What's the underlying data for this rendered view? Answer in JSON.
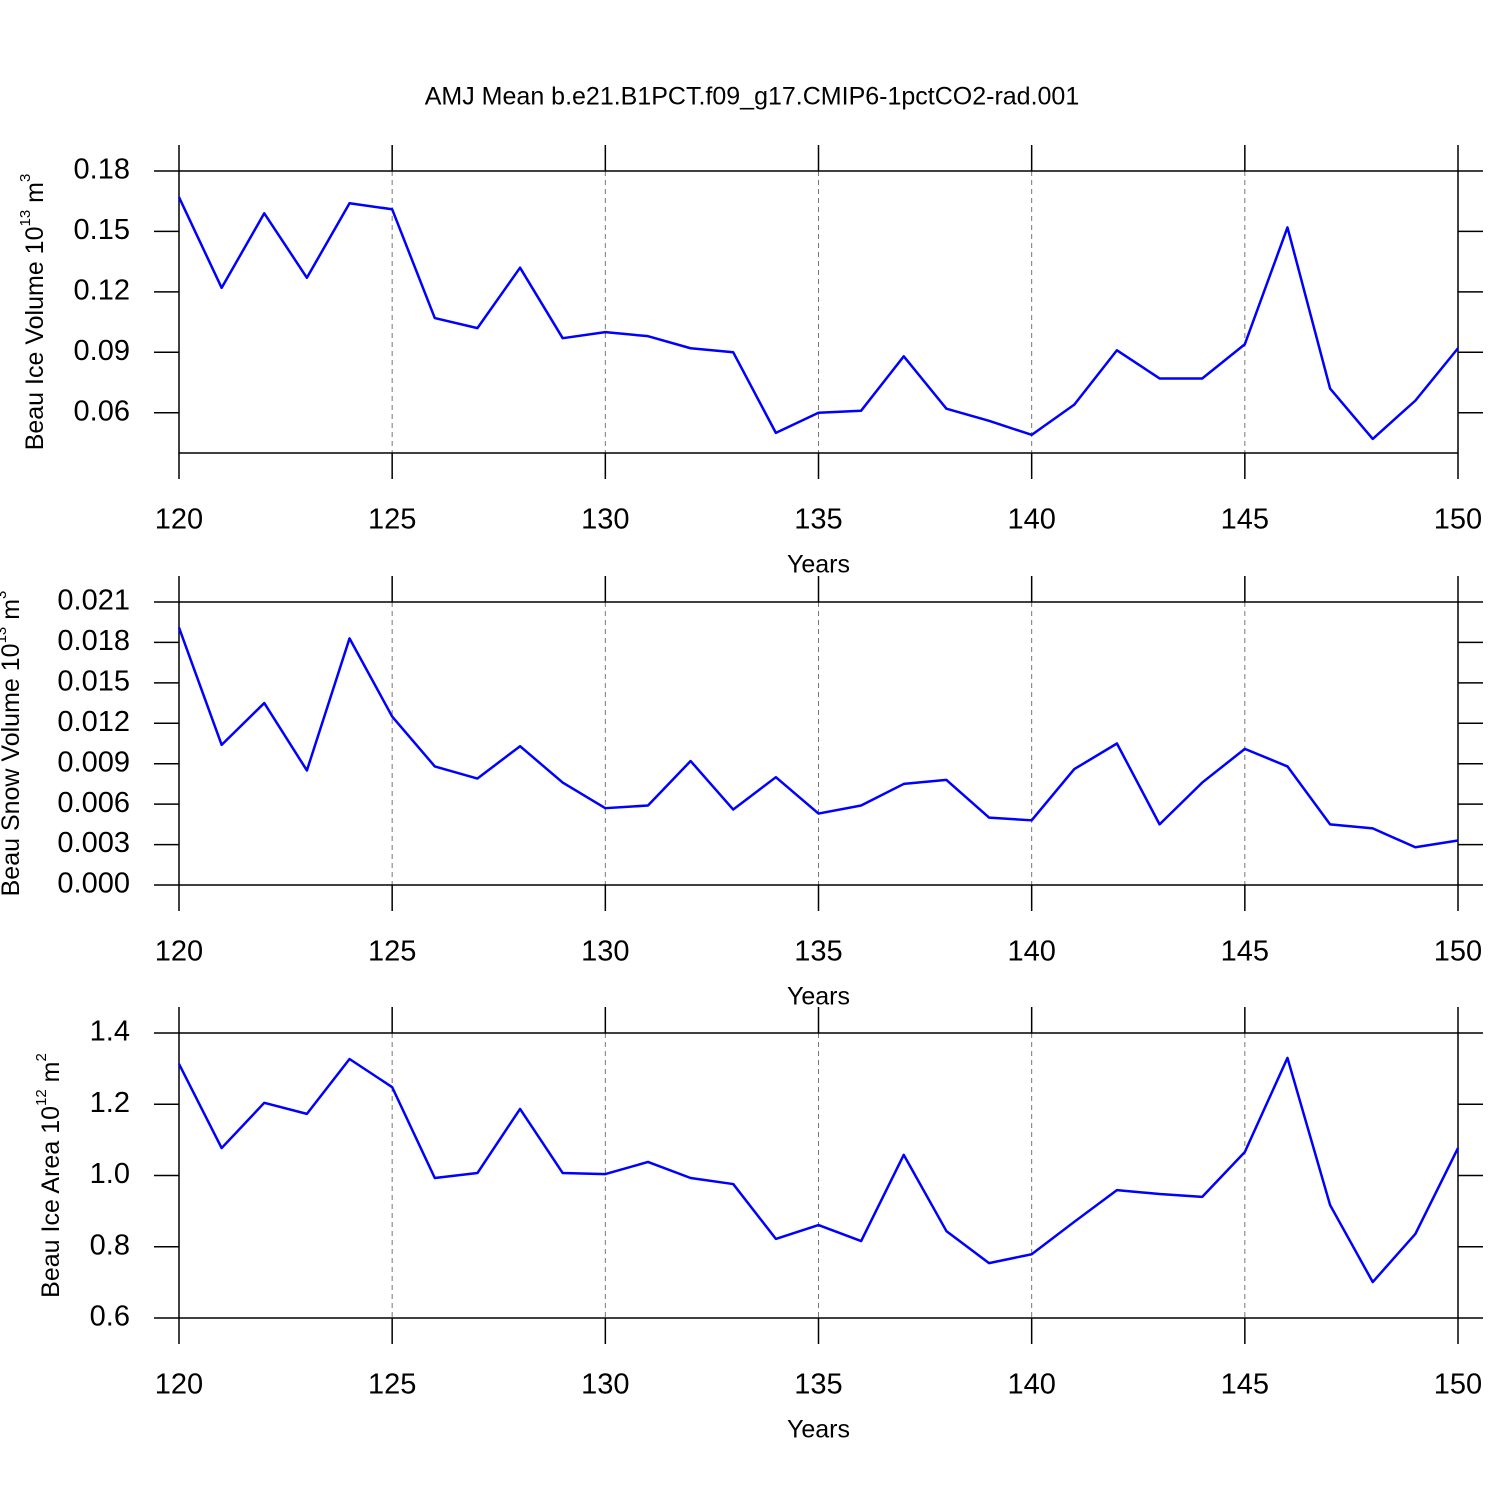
{
  "title": "AMJ Mean b.e21.B1PCT.f09_g17.CMIP6-1pctCO2-rad.001",
  "chart_data": [
    {
      "type": "line",
      "color": "#0000ff",
      "xgrid": "dashed",
      "xlabel": "Years",
      "ylabel": [
        "Beau Ice Volume 10",
        "13",
        " m",
        "3"
      ],
      "x": [
        120,
        121,
        122,
        123,
        124,
        125,
        126,
        127,
        128,
        129,
        130,
        131,
        132,
        133,
        134,
        135,
        136,
        137,
        138,
        139,
        140,
        141,
        142,
        143,
        144,
        145,
        146,
        147,
        148,
        149,
        150
      ],
      "values": [
        0.167,
        0.122,
        0.159,
        0.127,
        0.164,
        0.161,
        0.107,
        0.102,
        0.132,
        0.097,
        0.1,
        0.098,
        0.092,
        0.09,
        0.05,
        0.06,
        0.061,
        0.088,
        0.062,
        0.056,
        0.049,
        0.064,
        0.091,
        0.077,
        0.077,
        0.094,
        0.152,
        0.072,
        0.047,
        0.066,
        0.092
      ],
      "xlim": [
        120,
        150
      ],
      "xticks": [
        120,
        125,
        130,
        135,
        140,
        145,
        150
      ],
      "ylim": [
        0.04,
        0.18
      ],
      "yticks": [
        0.06,
        0.09,
        0.12,
        0.15,
        0.18
      ]
    },
    {
      "type": "line",
      "color": "#0000ff",
      "xgrid": "dashed",
      "xlabel": "Years",
      "ylabel": [
        "Beau Snow Volume 10",
        "13",
        " m",
        "3"
      ],
      "x": [
        120,
        121,
        122,
        123,
        124,
        125,
        126,
        127,
        128,
        129,
        130,
        131,
        132,
        133,
        134,
        135,
        136,
        137,
        138,
        139,
        140,
        141,
        142,
        143,
        144,
        145,
        146,
        147,
        148,
        149,
        150
      ],
      "values": [
        0.0191,
        0.0104,
        0.0135,
        0.0085,
        0.0183,
        0.0125,
        0.0088,
        0.0079,
        0.0103,
        0.0076,
        0.0057,
        0.0059,
        0.0092,
        0.0056,
        0.008,
        0.0053,
        0.0059,
        0.0075,
        0.0078,
        0.005,
        0.0048,
        0.0086,
        0.0105,
        0.0045,
        0.0076,
        0.0101,
        0.0088,
        0.0045,
        0.0042,
        0.0028,
        0.0033
      ],
      "xlim": [
        120,
        150
      ],
      "xticks": [
        120,
        125,
        130,
        135,
        140,
        145,
        150
      ],
      "ylim": [
        0,
        0.021
      ],
      "yticks": [
        {
          "value": 0,
          "label": "0.000"
        },
        0.003,
        0.006,
        0.009,
        0.012,
        0.015,
        0.018,
        0.021
      ]
    },
    {
      "type": "line",
      "color": "#0000ff",
      "xgrid": "dashed",
      "xlabel": "Years",
      "ylabel": [
        "Beau Ice Area 10",
        "12",
        " m",
        "2"
      ],
      "x": [
        120,
        121,
        122,
        123,
        124,
        125,
        126,
        127,
        128,
        129,
        130,
        131,
        132,
        133,
        134,
        135,
        136,
        137,
        138,
        139,
        140,
        141,
        142,
        143,
        144,
        145,
        146,
        147,
        148,
        149,
        150
      ],
      "values": [
        1.313,
        1.077,
        1.204,
        1.173,
        1.327,
        1.248,
        0.993,
        1.007,
        1.187,
        1.007,
        1.004,
        1.038,
        0.993,
        0.976,
        0.822,
        0.861,
        0.816,
        1.058,
        0.844,
        0.754,
        0.779,
        0.87,
        0.959,
        0.948,
        0.94,
        1.066,
        1.33,
        0.917,
        0.701,
        0.836,
        1.077
      ],
      "xlim": [
        120,
        150
      ],
      "xticks": [
        120,
        125,
        130,
        135,
        140,
        145,
        150
      ],
      "ylim": [
        0.6,
        1.4
      ],
      "yticks": [
        0.6,
        0.8,
        {
          "value": 1,
          "label": "1.0"
        },
        1.2,
        1.4
      ]
    }
  ]
}
